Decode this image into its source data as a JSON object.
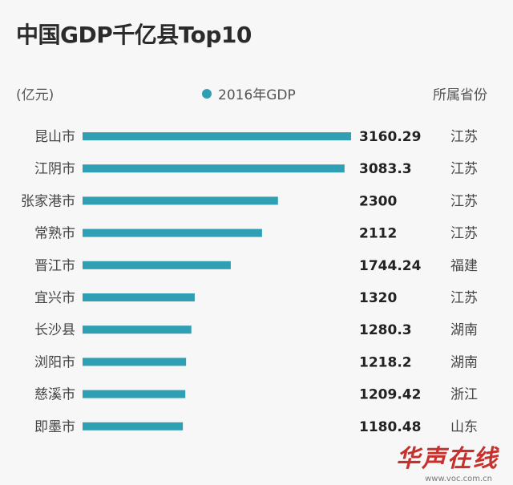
{
  "header": {
    "title": "中国GDP千亿县Top10",
    "unit": "(亿元)",
    "province_header": "所属省份"
  },
  "watermark": {
    "logo": "华声在线",
    "url": "www.voc.com.cn"
  },
  "colors": {
    "bar": "#2f9fb3"
  },
  "chart_data": {
    "type": "bar",
    "orientation": "horizontal",
    "title": "中国GDP千亿县Top10",
    "unit": "(亿元)",
    "legend": [
      "2016年GDP"
    ],
    "categories": [
      "昆山市",
      "江阴市",
      "张家港市",
      "常熟市",
      "晋江市",
      "宜兴市",
      "长沙县",
      "浏阳市",
      "慈溪市",
      "即墨市"
    ],
    "series": [
      {
        "name": "2016年GDP",
        "values": [
          3160.29,
          3083.3,
          2300,
          2112,
          1744.24,
          1320,
          1280.3,
          1218.2,
          1209.42,
          1180.48
        ],
        "labels": [
          "3160.29",
          "3083.3",
          "2300",
          "2112",
          "1744.24",
          "1320",
          "1280.3",
          "1218.2",
          "1209.42",
          "1180.48"
        ]
      }
    ],
    "provinces": [
      "江苏",
      "江苏",
      "江苏",
      "江苏",
      "福建",
      "江苏",
      "湖南",
      "湖南",
      "浙江",
      "山东"
    ],
    "xlim": [
      0,
      3160.29
    ],
    "grid": false
  }
}
